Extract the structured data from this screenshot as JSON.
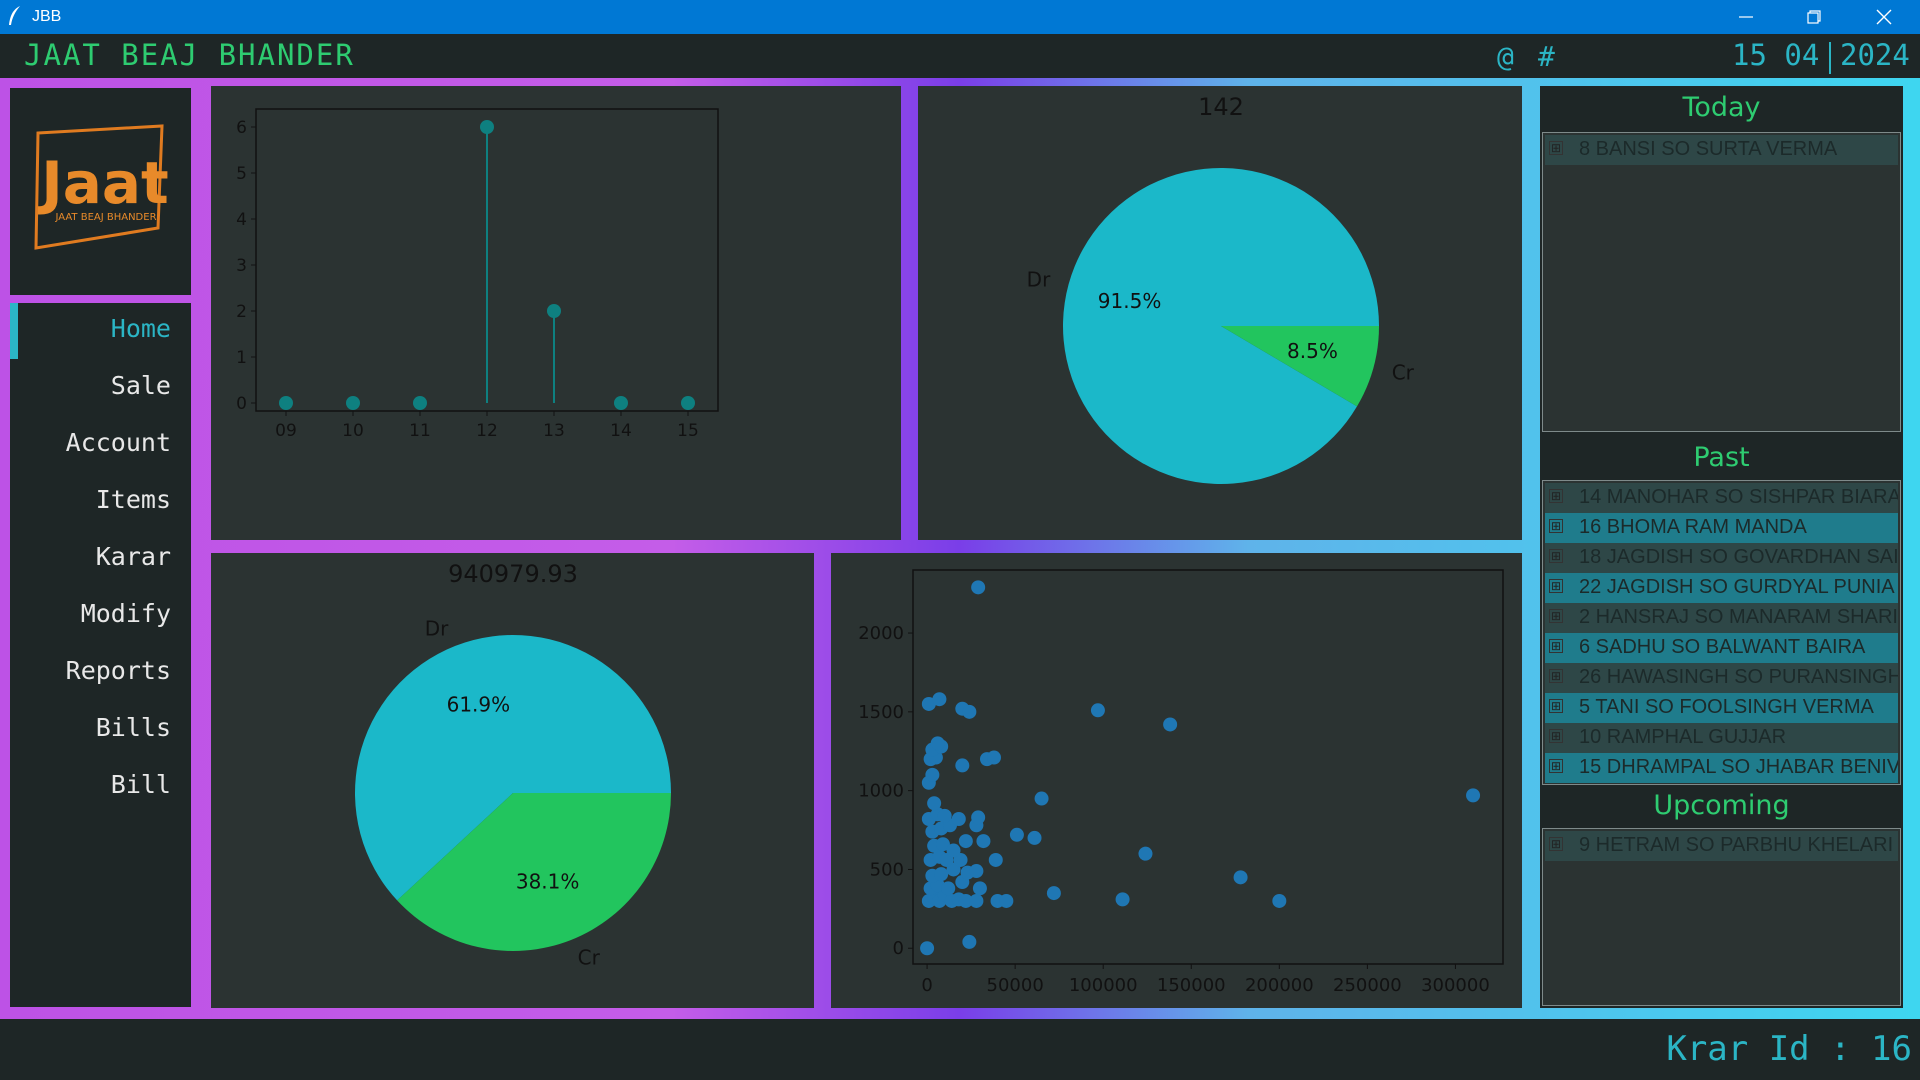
{
  "window": {
    "title": "JBB"
  },
  "header": {
    "brand": "JAAT BEAJ BHANDER",
    "symbols": [
      "@",
      "#"
    ],
    "date_day_month": "15 04",
    "date_year": "2024"
  },
  "logo": {
    "word": "Jaat",
    "tagline": "JAAT BEAJ BHANDER"
  },
  "nav": {
    "items": [
      "Home",
      "Sale",
      "Account",
      "Items",
      "Karar",
      "Modify",
      "Reports",
      "Bills",
      "Bill"
    ],
    "active": "Home"
  },
  "side": {
    "today_title": "Today",
    "today": [
      "8 BANSI SO SURTA VERMA"
    ],
    "past_title": "Past",
    "past": [
      "14 MANOHAR SO SISHPAR BIARA",
      "16 BHOMA RAM MANDA",
      "18 JAGDISH SO GOVARDHAN SAI",
      "22 JAGDISH SO GURDYAL PUNIA",
      "2 HANSRAJ SO MANARAM SHARI",
      "6 SADHU SO BALWANT BAIRA",
      "26 HAWASINGH SO PURANSINGH",
      "5 TANI SO FOOLSINGH VERMA",
      "10 RAMPHAL GUJJAR",
      "15 DHRAMPAL SO JHABAR BENIV"
    ],
    "upcoming_title": "Upcoming",
    "upcoming": [
      "9 HETRAM SO PARBHU KHELARI"
    ],
    "expand_symbol": "⊞"
  },
  "status": {
    "krar_id": "Krar Id : 16"
  },
  "colors": {
    "accent": "#2bb5c5",
    "green": "#2ecc71",
    "pie_dr": "#1bb8c9",
    "pie_cr": "#22c55e",
    "scatter": "#1f77b4",
    "stem": "#0e8080"
  },
  "chart_data": [
    {
      "type": "line",
      "style": "stem",
      "x": [
        "09",
        "10",
        "11",
        "12",
        "13",
        "14",
        "15"
      ],
      "values": [
        0,
        0,
        0,
        6,
        2,
        0,
        0
      ],
      "ylim": [
        0,
        6
      ],
      "yticks": [
        0,
        1,
        2,
        3,
        4,
        5,
        6
      ],
      "title": "",
      "xlabel": "",
      "ylabel": ""
    },
    {
      "type": "pie",
      "title": "142",
      "labels": [
        "Dr",
        "Cr"
      ],
      "values": [
        91.5,
        8.5
      ],
      "pct_labels": [
        "91.5%",
        "8.5%"
      ]
    },
    {
      "type": "pie",
      "title": "940979.93",
      "labels": [
        "Dr",
        "Cr"
      ],
      "values": [
        61.9,
        38.1
      ],
      "pct_labels": [
        "61.9%",
        "38.1%"
      ]
    },
    {
      "type": "scatter",
      "xticks": [
        "0",
        "50000",
        "100000",
        "150000",
        "200000",
        "250000",
        "300000"
      ],
      "yticks": [
        "0",
        "500",
        "1000",
        "1500",
        "2000"
      ],
      "xlim": [
        -8000,
        327000
      ],
      "ylim": [
        -100,
        2400
      ],
      "points": [
        [
          0,
          0
        ],
        [
          24000,
          40
        ],
        [
          1000,
          300
        ],
        [
          4000,
          320
        ],
        [
          7000,
          300
        ],
        [
          10000,
          340
        ],
        [
          14000,
          300
        ],
        [
          18000,
          310
        ],
        [
          22000,
          300
        ],
        [
          28000,
          300
        ],
        [
          40000,
          300
        ],
        [
          45000,
          300
        ],
        [
          2000,
          380
        ],
        [
          6000,
          400
        ],
        [
          12000,
          380
        ],
        [
          20000,
          420
        ],
        [
          30000,
          380
        ],
        [
          3000,
          460
        ],
        [
          8000,
          470
        ],
        [
          15000,
          500
        ],
        [
          23000,
          480
        ],
        [
          28000,
          490
        ],
        [
          2000,
          560
        ],
        [
          7000,
          580
        ],
        [
          11000,
          560
        ],
        [
          19000,
          560
        ],
        [
          39000,
          560
        ],
        [
          4000,
          650
        ],
        [
          9000,
          660
        ],
        [
          15000,
          620
        ],
        [
          22000,
          680
        ],
        [
          32000,
          680
        ],
        [
          51000,
          720
        ],
        [
          61000,
          700
        ],
        [
          3000,
          740
        ],
        [
          8000,
          760
        ],
        [
          13000,
          780
        ],
        [
          28000,
          780
        ],
        [
          1000,
          820
        ],
        [
          6000,
          850
        ],
        [
          10000,
          840
        ],
        [
          18000,
          820
        ],
        [
          29000,
          830
        ],
        [
          4000,
          920
        ],
        [
          65000,
          950
        ],
        [
          1000,
          1050
        ],
        [
          3000,
          1100
        ],
        [
          20000,
          1160
        ],
        [
          2000,
          1200
        ],
        [
          5000,
          1210
        ],
        [
          34000,
          1200
        ],
        [
          38000,
          1210
        ],
        [
          3000,
          1260
        ],
        [
          8000,
          1280
        ],
        [
          6000,
          1300
        ],
        [
          1000,
          1550
        ],
        [
          7000,
          1580
        ],
        [
          20000,
          1520
        ],
        [
          24000,
          1500
        ],
        [
          97000,
          1510
        ],
        [
          138000,
          1420
        ],
        [
          124000,
          600
        ],
        [
          72000,
          350
        ],
        [
          111000,
          310
        ],
        [
          178000,
          450
        ],
        [
          200000,
          300
        ],
        [
          310000,
          970
        ],
        [
          29000,
          2290
        ]
      ]
    }
  ]
}
